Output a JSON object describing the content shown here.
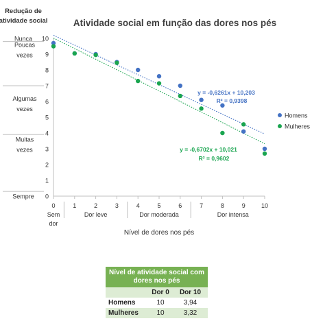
{
  "chart_data": {
    "type": "scatter",
    "title": "Atividade social em função das dores nos pés",
    "xlabel": "Nível de dores nos pés",
    "ylabel": "Redução de atividade social",
    "xlim": [
      0,
      10
    ],
    "ylim": [
      0,
      10
    ],
    "x_ticks": [
      0,
      1,
      2,
      3,
      4,
      5,
      6,
      7,
      8,
      9,
      10
    ],
    "y_ticks": [
      0,
      1,
      2,
      3,
      4,
      5,
      6,
      7,
      8,
      9,
      10
    ],
    "x_extra_label": "Sem dor",
    "x_groups": [
      "Dor leve",
      "Dor moderada",
      "Dor intensa"
    ],
    "y_categories": [
      "Nunca",
      "Poucas vezes",
      "Algumas vezes",
      "Muitas vezes",
      "Sempre"
    ],
    "grid": false,
    "legend_position": "right",
    "series": [
      {
        "name": "Homens",
        "color": "#4472c4",
        "x": [
          0,
          1,
          2,
          3,
          4,
          5,
          6,
          7,
          8,
          9,
          10
        ],
        "y": [
          9.7,
          9.05,
          9.0,
          8.5,
          8.0,
          7.6,
          7.0,
          6.1,
          5.75,
          4.1,
          3.0
        ],
        "trend_label": "y = -0,6261x + 10,203",
        "r2_label": "R² = 0,9398",
        "trend_slope": -0.6261,
        "trend_intercept": 10.203
      },
      {
        "name": "Mulheres",
        "color": "#1aa550",
        "x": [
          0,
          1,
          2,
          3,
          4,
          5,
          6,
          7,
          8,
          9,
          10
        ],
        "y": [
          9.5,
          9.05,
          8.95,
          8.45,
          7.3,
          7.15,
          6.35,
          5.55,
          4.0,
          4.55,
          2.7
        ],
        "trend_label": "y = -0,6702x + 10,021",
        "r2_label": "R² = 0,9602",
        "trend_slope": -0.6702,
        "trend_intercept": 10.021
      }
    ]
  },
  "table": {
    "header": "Nível de atividade social com dores nos pés",
    "col1": "Dor 0",
    "col2": "Dor 10",
    "rows": [
      {
        "label": "Homens",
        "v0": "10",
        "v10": "3,94"
      },
      {
        "label": "Mulheres",
        "v0": "10",
        "v10": "3,32"
      }
    ]
  }
}
